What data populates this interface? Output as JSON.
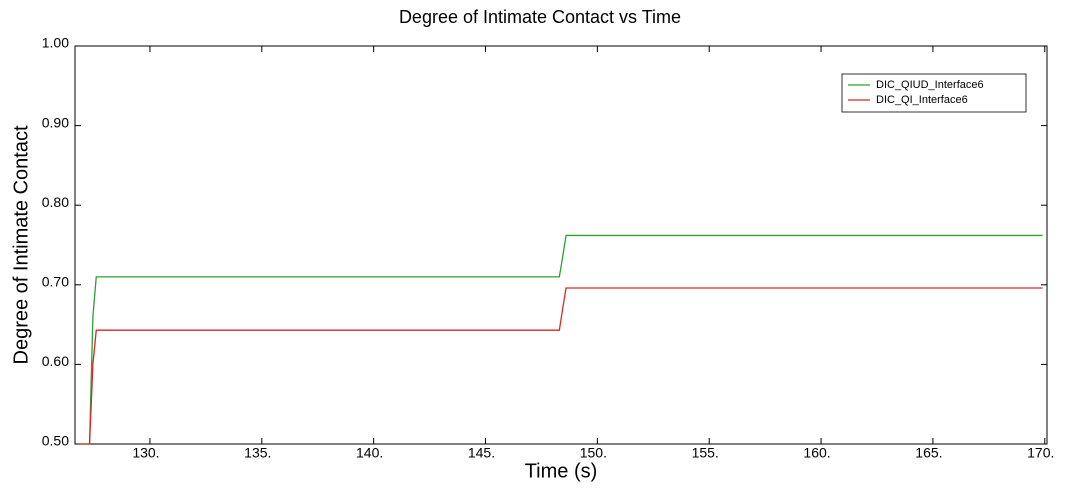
{
  "chart_data": {
    "type": "line",
    "title": "Degree of Intimate Contact vs Time",
    "x_label": "Time (s)",
    "y_label": "Degree of Intimate Contact",
    "xlim": [
      126.65,
      170.1
    ],
    "ylim": [
      0.5,
      1.0
    ],
    "xticks": [
      {
        "value": 130,
        "label": "130."
      },
      {
        "value": 135,
        "label": "135."
      },
      {
        "value": 140,
        "label": "140."
      },
      {
        "value": 145,
        "label": "145."
      },
      {
        "value": 150,
        "label": "150."
      },
      {
        "value": 155,
        "label": "155."
      },
      {
        "value": 160,
        "label": "160."
      },
      {
        "value": 165,
        "label": "165."
      },
      {
        "value": 170,
        "label": "170."
      }
    ],
    "yticks": [
      {
        "value": 0.5,
        "label": "0.50"
      },
      {
        "value": 0.6,
        "label": "0.60"
      },
      {
        "value": 0.7,
        "label": "0.70"
      },
      {
        "value": 0.8,
        "label": "0.80"
      },
      {
        "value": 0.9,
        "label": "0.90"
      },
      {
        "value": 1.0,
        "label": "1.00"
      }
    ],
    "x": [
      126.9,
      127.3,
      127.45,
      127.6,
      148.3,
      148.45,
      148.6,
      169.9
    ],
    "series": [
      {
        "name": "DIC_QIUD_Interface6",
        "color": "#2ca02c",
        "values": [
          0.5,
          0.5,
          0.66,
          0.71,
          0.71,
          0.735,
          0.762,
          0.762
        ]
      },
      {
        "name": "DIC_QI_Interface6",
        "color": "#d62728",
        "values": [
          0.5,
          0.5,
          0.6,
          0.643,
          0.643,
          0.67,
          0.696,
          0.696
        ]
      }
    ],
    "legend": "upper right"
  }
}
